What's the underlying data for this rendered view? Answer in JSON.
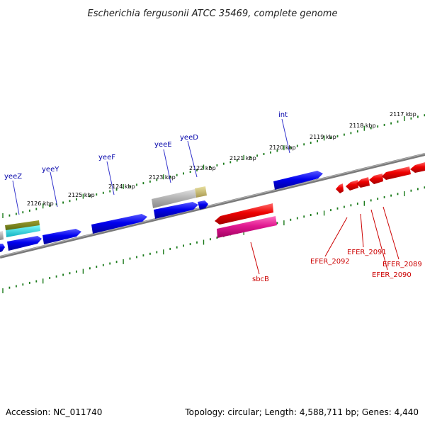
{
  "header": {
    "title": "Escherichia fergusonii ATCC 35469, complete genome"
  },
  "footer": {
    "accession": "Accession: NC_011740",
    "topology": "Topology: circular; Length: 4,588,711 bp; Genes: 4,440"
  },
  "ruler": {
    "ticks": [
      {
        "label": "2117 kbp"
      },
      {
        "label": "2118 kbp"
      },
      {
        "label": "2119 kbp"
      },
      {
        "label": "2120 kbp"
      },
      {
        "label": "2121 kbp"
      },
      {
        "label": "2122 kbp"
      },
      {
        "label": "2123 kbp"
      },
      {
        "label": "2124 kbp"
      },
      {
        "label": "2125 kbp"
      },
      {
        "label": "2126 kbp"
      }
    ]
  },
  "gene_labels": {
    "int": "int",
    "yeeD": "yeeD",
    "yeeE": "yeeE",
    "yeeF": "yeeF",
    "yeeY": "yeeY",
    "yeeZ": "yeeZ",
    "sbcB": "sbcB",
    "EFER_2092": "EFER_2092",
    "EFER_2091": "EFER_2091",
    "EFER_2090": "EFER_2090",
    "EFER_2089": "EFER_2089"
  },
  "colors": {
    "forward_gene": "#0000ee",
    "reverse_gene": "#ee0000",
    "reverse_gene_pink": "#e01890",
    "tick": "#1a7a1a",
    "label_forward": "#0000aa",
    "label_reverse": "#cc0000",
    "backbone": "#808080"
  }
}
